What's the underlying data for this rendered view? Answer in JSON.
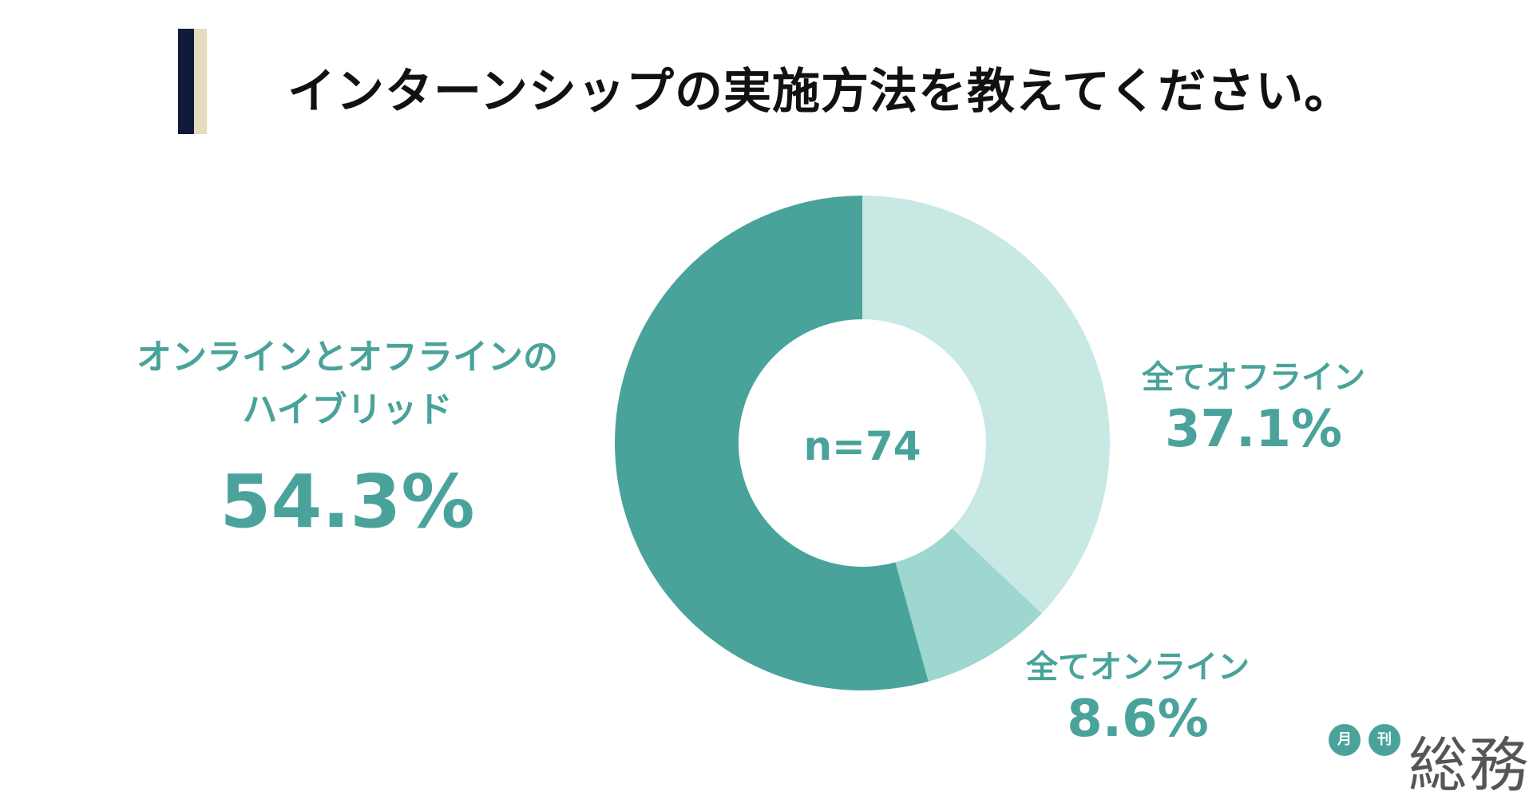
{
  "title": "インターンシップの実施方法を教えてください。",
  "center_label": "n=74",
  "labels": {
    "hybrid_line1": "オンラインとオフラインの",
    "hybrid_line2": "ハイブリッド",
    "hybrid_pct": "54.3%",
    "offline": "全てオフライン",
    "offline_pct": "37.1%",
    "online": "全てオンライン",
    "online_pct": "8.6%"
  },
  "logo": {
    "badge1": "月",
    "badge2": "刊",
    "word": "総務"
  },
  "chart_data": {
    "type": "pie",
    "title": "インターンシップの実施方法を教えてください。",
    "n": 74,
    "categories": [
      "全てオフライン",
      "全てオンライン",
      "オンラインとオフラインのハイブリッド"
    ],
    "values": [
      37.1,
      8.6,
      54.3
    ],
    "colors": [
      "#c8e8e4",
      "#9dd7cf",
      "#4aa39b"
    ]
  }
}
